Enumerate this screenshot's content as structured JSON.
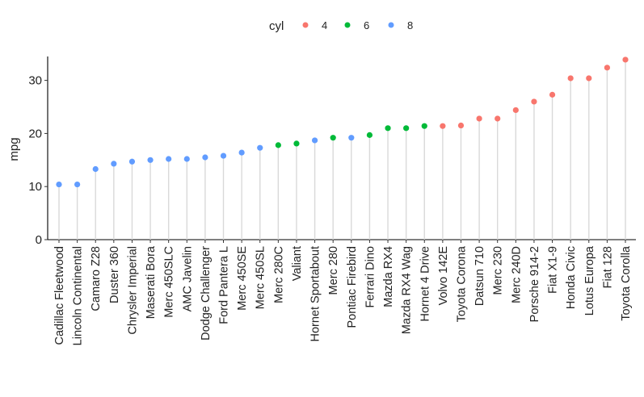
{
  "chart_data": {
    "type": "lollipop",
    "ylabel": "mpg",
    "ylim": [
      0,
      34.5
    ],
    "yticks": [
      0,
      10,
      20,
      30
    ],
    "legend": {
      "title": "cyl",
      "position": "top",
      "items": [
        {
          "label": "4",
          "color": "#F8766D"
        },
        {
          "label": "6",
          "color": "#00BA38"
        },
        {
          "label": "8",
          "color": "#619CFF"
        }
      ]
    },
    "stem_color": "#d9d9d9",
    "grid": false,
    "points": [
      {
        "name": "Cadillac Fleetwood",
        "mpg": 10.4,
        "cyl": "8"
      },
      {
        "name": "Lincoln Continental",
        "mpg": 10.4,
        "cyl": "8"
      },
      {
        "name": "Camaro Z28",
        "mpg": 13.3,
        "cyl": "8"
      },
      {
        "name": "Duster 360",
        "mpg": 14.3,
        "cyl": "8"
      },
      {
        "name": "Chrysler Imperial",
        "mpg": 14.7,
        "cyl": "8"
      },
      {
        "name": "Maserati Bora",
        "mpg": 15.0,
        "cyl": "8"
      },
      {
        "name": "Merc 450SLC",
        "mpg": 15.2,
        "cyl": "8"
      },
      {
        "name": "AMC Javelin",
        "mpg": 15.2,
        "cyl": "8"
      },
      {
        "name": "Dodge Challenger",
        "mpg": 15.5,
        "cyl": "8"
      },
      {
        "name": "Ford Pantera L",
        "mpg": 15.8,
        "cyl": "8"
      },
      {
        "name": "Merc 450SE",
        "mpg": 16.4,
        "cyl": "8"
      },
      {
        "name": "Merc 450SL",
        "mpg": 17.3,
        "cyl": "8"
      },
      {
        "name": "Merc 280C",
        "mpg": 17.8,
        "cyl": "6"
      },
      {
        "name": "Valiant",
        "mpg": 18.1,
        "cyl": "6"
      },
      {
        "name": "Hornet Sportabout",
        "mpg": 18.7,
        "cyl": "8"
      },
      {
        "name": "Merc 280",
        "mpg": 19.2,
        "cyl": "6"
      },
      {
        "name": "Pontiac Firebird",
        "mpg": 19.2,
        "cyl": "8"
      },
      {
        "name": "Ferrari Dino",
        "mpg": 19.7,
        "cyl": "6"
      },
      {
        "name": "Mazda RX4",
        "mpg": 21.0,
        "cyl": "6"
      },
      {
        "name": "Mazda RX4 Wag",
        "mpg": 21.0,
        "cyl": "6"
      },
      {
        "name": "Hornet 4 Drive",
        "mpg": 21.4,
        "cyl": "6"
      },
      {
        "name": "Volvo 142E",
        "mpg": 21.4,
        "cyl": "4"
      },
      {
        "name": "Toyota Corona",
        "mpg": 21.5,
        "cyl": "4"
      },
      {
        "name": "Datsun 710",
        "mpg": 22.8,
        "cyl": "4"
      },
      {
        "name": "Merc 230",
        "mpg": 22.8,
        "cyl": "4"
      },
      {
        "name": "Merc 240D",
        "mpg": 24.4,
        "cyl": "4"
      },
      {
        "name": "Porsche 914-2",
        "mpg": 26.0,
        "cyl": "4"
      },
      {
        "name": "Fiat X1-9",
        "mpg": 27.3,
        "cyl": "4"
      },
      {
        "name": "Honda Civic",
        "mpg": 30.4,
        "cyl": "4"
      },
      {
        "name": "Lotus Europa",
        "mpg": 30.4,
        "cyl": "4"
      },
      {
        "name": "Fiat 128",
        "mpg": 32.4,
        "cyl": "4"
      },
      {
        "name": "Toyota Corolla",
        "mpg": 33.9,
        "cyl": "4"
      }
    ]
  }
}
